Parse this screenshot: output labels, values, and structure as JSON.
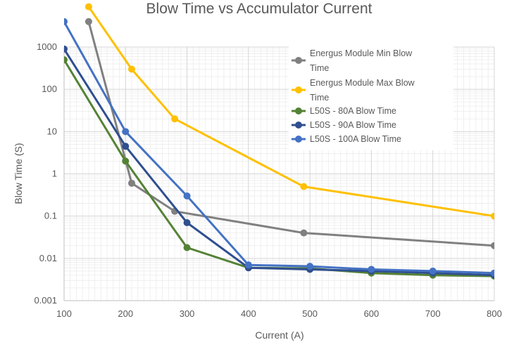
{
  "chart_data": {
    "type": "line",
    "title": "Blow Time vs Accumulator Current",
    "xlabel": "Current (A)",
    "ylabel": "Blow Time (S)",
    "xlim": [
      100,
      800
    ],
    "ylim": [
      0.001,
      1000
    ],
    "y_scale": "log",
    "grid": true,
    "legend_position": "top-right",
    "x_ticks": [
      "100",
      "200",
      "300",
      "400",
      "500",
      "600",
      "700",
      "800"
    ],
    "y_ticks": [
      "0.001",
      "0.01",
      "0.1",
      "1",
      "10",
      "100",
      "1000"
    ],
    "series": [
      {
        "name": "Energus Module Min Blow Time",
        "color": "#808080",
        "x": [
          140,
          210,
          280,
          490,
          800
        ],
        "y": [
          4000,
          0.6,
          0.13,
          0.04,
          0.02
        ]
      },
      {
        "name": "Energus Module Max Blow Time",
        "color": "#FFC000",
        "x": [
          140,
          210,
          280,
          490,
          800
        ],
        "y": [
          9000,
          300,
          20,
          0.5,
          0.1
        ]
      },
      {
        "name": "L50S - 80A Blow Time",
        "color": "#548235",
        "x": [
          100,
          200,
          300,
          400,
          500,
          600,
          700,
          800
        ],
        "y": [
          500,
          2,
          0.018,
          0.006,
          0.0058,
          0.0045,
          0.004,
          0.0038
        ]
      },
      {
        "name": "L50S - 90A Blow Time",
        "color": "#2F4F8F",
        "x": [
          100,
          200,
          300,
          400,
          500,
          600,
          700,
          800
        ],
        "y": [
          900,
          4.5,
          0.07,
          0.006,
          0.0055,
          0.005,
          0.0045,
          0.004
        ]
      },
      {
        "name": "L50S - 100A Blow Time",
        "color": "#4472C4",
        "x": [
          100,
          200,
          300,
          400,
          500,
          600,
          700,
          800
        ],
        "y": [
          4000,
          10,
          0.3,
          0.007,
          0.0065,
          0.0055,
          0.005,
          0.0045
        ]
      }
    ]
  }
}
